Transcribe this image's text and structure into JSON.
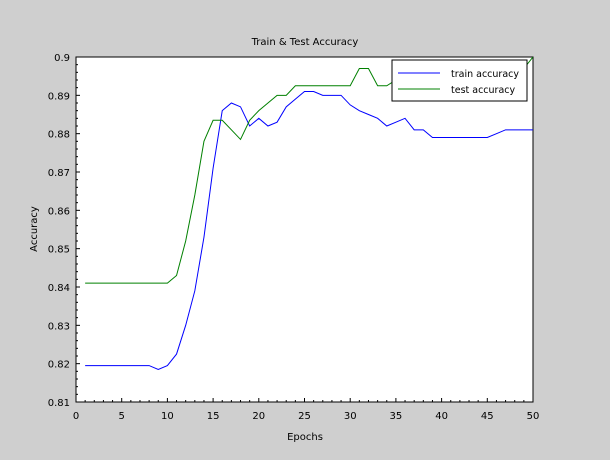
{
  "figure": {
    "background": "#cfcfcf",
    "plot_background": "#ffffff"
  },
  "chart_data": {
    "type": "line",
    "title": "Train & Test Accuracy",
    "xlabel": "Epochs",
    "ylabel": "Accuracy",
    "xlim": [
      0,
      50
    ],
    "ylim": [
      0.81,
      0.9
    ],
    "xticks": [
      0,
      5,
      10,
      15,
      20,
      25,
      30,
      35,
      40,
      45,
      50
    ],
    "yticks": [
      0.81,
      0.82,
      0.83,
      0.84,
      0.85,
      0.86,
      0.87,
      0.88,
      0.89,
      0.9
    ],
    "ytick_labels": [
      "0.81",
      "0.82",
      "0.83",
      "0.84",
      "0.85",
      "0.86",
      "0.87",
      "0.88",
      "0.89",
      "0.9"
    ],
    "grid": false,
    "legend_position": "top-right",
    "x": [
      1,
      2,
      3,
      4,
      5,
      6,
      7,
      8,
      9,
      10,
      11,
      12,
      13,
      14,
      15,
      16,
      17,
      18,
      19,
      20,
      21,
      22,
      23,
      24,
      25,
      26,
      27,
      28,
      29,
      30,
      31,
      32,
      33,
      34,
      35,
      36,
      37,
      38,
      39,
      40,
      41,
      42,
      43,
      44,
      45,
      46,
      47,
      48,
      49,
      50
    ],
    "series": [
      {
        "name": "train accuracy",
        "color": "#0000ff",
        "values": [
          0.8195,
          0.8195,
          0.8195,
          0.8195,
          0.8195,
          0.8195,
          0.8195,
          0.8195,
          0.8185,
          0.8195,
          0.8225,
          0.83,
          0.839,
          0.853,
          0.871,
          0.886,
          0.888,
          0.887,
          0.882,
          0.884,
          0.882,
          0.883,
          0.887,
          0.889,
          0.891,
          0.891,
          0.89,
          0.89,
          0.89,
          0.8875,
          0.886,
          0.885,
          0.884,
          0.882,
          0.883,
          0.884,
          0.881,
          0.881,
          0.879,
          0.879,
          0.879,
          0.879,
          0.879,
          0.879,
          0.879,
          0.88,
          0.881,
          0.881,
          0.881,
          0.881
        ]
      },
      {
        "name": "test accuracy",
        "color": "#008000",
        "values": [
          0.841,
          0.841,
          0.841,
          0.841,
          0.841,
          0.841,
          0.841,
          0.841,
          0.841,
          0.841,
          0.843,
          0.852,
          0.864,
          0.878,
          0.8835,
          0.8835,
          0.881,
          0.8785,
          0.8835,
          0.886,
          0.888,
          0.89,
          0.89,
          0.8925,
          0.8925,
          0.8925,
          0.8925,
          0.8925,
          0.8925,
          0.8925,
          0.897,
          0.897,
          0.8925,
          0.8925,
          0.894,
          0.894,
          0.894,
          0.894,
          0.894,
          0.894,
          0.894,
          0.894,
          0.894,
          0.894,
          0.894,
          0.894,
          0.894,
          0.894,
          0.897,
          0.9
        ]
      }
    ]
  }
}
